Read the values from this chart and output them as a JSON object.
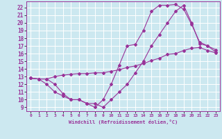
{
  "xlabel": "Windchill (Refroidissement éolien,°C)",
  "bg_color": "#cce8f0",
  "grid_color": "#ffffff",
  "line_color": "#993399",
  "xlim": [
    -0.5,
    23.5
  ],
  "ylim": [
    8.5,
    22.8
  ],
  "xticks": [
    0,
    1,
    2,
    3,
    4,
    5,
    6,
    7,
    8,
    9,
    10,
    11,
    12,
    13,
    14,
    15,
    16,
    17,
    18,
    19,
    20,
    21,
    22,
    23
  ],
  "yticks": [
    9,
    10,
    11,
    12,
    13,
    14,
    15,
    16,
    17,
    18,
    19,
    20,
    21,
    22
  ],
  "line1_x": [
    0,
    1,
    2,
    3,
    4,
    5,
    6,
    7,
    8,
    9,
    10,
    11,
    12,
    13,
    14,
    15,
    16,
    17,
    18,
    19,
    20,
    21,
    22,
    23
  ],
  "line1_y": [
    12.8,
    12.7,
    12.7,
    12.0,
    10.8,
    10.0,
    10.0,
    9.5,
    9.0,
    10.0,
    12.0,
    14.5,
    17.0,
    17.2,
    19.0,
    21.5,
    22.3,
    22.3,
    22.4,
    21.8,
    19.8,
    17.5,
    17.0,
    16.2
  ],
  "line2_x": [
    0,
    1,
    2,
    3,
    4,
    5,
    6,
    7,
    8,
    9,
    10,
    11,
    12,
    13,
    14,
    15,
    16,
    17,
    18,
    19,
    20,
    21,
    22,
    23
  ],
  "line2_y": [
    12.8,
    12.7,
    12.7,
    13.0,
    13.2,
    13.3,
    13.4,
    13.4,
    13.5,
    13.5,
    13.7,
    13.9,
    14.2,
    14.4,
    14.7,
    15.1,
    15.4,
    15.9,
    16.0,
    16.4,
    16.7,
    16.8,
    16.4,
    16.1
  ],
  "line3_x": [
    0,
    1,
    2,
    3,
    4,
    5,
    6,
    7,
    8,
    9,
    10,
    11,
    12,
    13,
    14,
    15,
    16,
    17,
    18,
    19,
    20,
    21,
    22,
    23
  ],
  "line3_y": [
    12.8,
    12.7,
    12.0,
    11.0,
    10.5,
    10.0,
    10.0,
    9.5,
    9.5,
    9.0,
    10.0,
    11.0,
    12.0,
    13.5,
    15.0,
    17.0,
    18.5,
    20.0,
    21.5,
    22.3,
    20.0,
    17.3,
    17.0,
    16.5
  ]
}
